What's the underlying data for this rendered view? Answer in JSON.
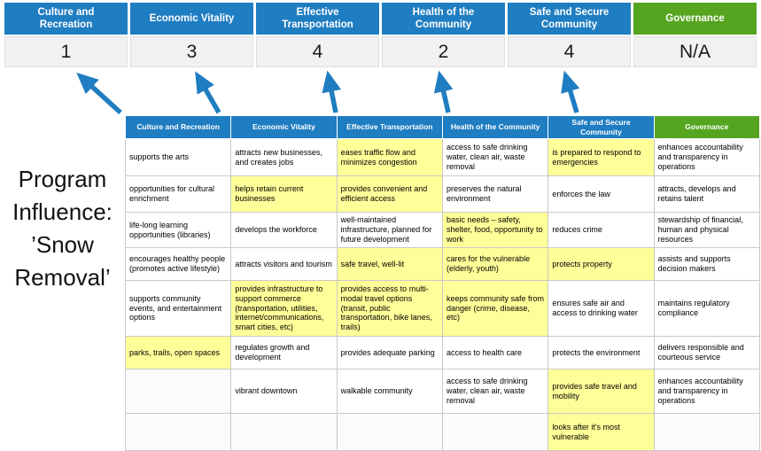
{
  "slide": {
    "program_title": "Program Influence: ’Snow Removal’",
    "program_title_lines": [
      "Program",
      "Influence:",
      "’Snow",
      "Removal’"
    ]
  },
  "colors": {
    "pillar_blue": "#1f7dc1",
    "pillar_green": "#56a521",
    "highlight_yellow": "#ffff99",
    "score_gray": "#f1f1f1",
    "arrow_blue": "#1f7dc1",
    "border_gray": "#c9c9c9"
  },
  "scoreboard": {
    "pillars": [
      {
        "label": "Culture and Recreation",
        "score": "1",
        "color": "blue"
      },
      {
        "label": "Economic Vitality",
        "score": "3",
        "color": "blue"
      },
      {
        "label": "Effective Transportation",
        "score": "4",
        "color": "blue"
      },
      {
        "label": "Health of the Community",
        "score": "2",
        "color": "blue"
      },
      {
        "label": "Safe and Secure Community",
        "score": "4",
        "color": "blue"
      },
      {
        "label": "Governance",
        "score": "N/A",
        "color": "green"
      }
    ]
  },
  "matrix": {
    "headers": [
      {
        "label": "Culture and Recreation",
        "color": "blue"
      },
      {
        "label": "Economic Vitality",
        "color": "blue"
      },
      {
        "label": "Effective Transportation",
        "color": "blue"
      },
      {
        "label": "Health of the Community",
        "color": "blue"
      },
      {
        "label": "Safe and Secure Community",
        "color": "blue"
      },
      {
        "label": "Governance",
        "color": "green"
      }
    ],
    "rows": [
      [
        {
          "text": "supports the arts",
          "highlight": false
        },
        {
          "text": "attracts new businesses, and creates jobs",
          "highlight": false
        },
        {
          "text": "eases traffic flow and minimizes congestion",
          "highlight": true
        },
        {
          "text": "access to safe drinking water, clean air, waste removal",
          "highlight": false
        },
        {
          "text": "is prepared to respond to emergencies",
          "highlight": true
        },
        {
          "text": "enhances accountability and transparency in operations",
          "highlight": false
        }
      ],
      [
        {
          "text": "opportunities for cultural enrichment",
          "highlight": false
        },
        {
          "text": "helps retain current businesses",
          "highlight": true
        },
        {
          "text": "provides convenient and efficient access",
          "highlight": true
        },
        {
          "text": "preserves the natural environment",
          "highlight": false
        },
        {
          "text": "enforces the law",
          "highlight": false
        },
        {
          "text": "attracts, develops and retains talent",
          "highlight": false
        }
      ],
      [
        {
          "text": "life-long learning opportunities (libraries)",
          "highlight": false
        },
        {
          "text": "develops the workforce",
          "highlight": false
        },
        {
          "text": "well-maintained infrastructure, planned for future development",
          "highlight": false
        },
        {
          "text": "basic needs – safety, shelter, food, opportunity to work",
          "highlight": true
        },
        {
          "text": "reduces crime",
          "highlight": false
        },
        {
          "text": "stewardship of financial, human and physical resources",
          "highlight": false
        }
      ],
      [
        {
          "text": "encourages healthy people (promotes active lifestyle)",
          "highlight": false
        },
        {
          "text": "attracts visitors and tourism",
          "highlight": false
        },
        {
          "text": "safe travel, well-lit",
          "highlight": true
        },
        {
          "text": "cares for the vulnerable (elderly, youth)",
          "highlight": true
        },
        {
          "text": "protects property",
          "highlight": true
        },
        {
          "text": "assists and supports decision makers",
          "highlight": false
        }
      ],
      [
        {
          "text": "supports community events, and entertainment options",
          "highlight": false
        },
        {
          "text": "provides infrastructure to support commerce (transportation, utilities, internet/communications, smart cities, etc)",
          "highlight": true
        },
        {
          "text": "provides access to multi-modal travel options (transit, public transportation, bike lanes, trails)",
          "highlight": true
        },
        {
          "text": "keeps community safe from danger (crime, disease, etc)",
          "highlight": true
        },
        {
          "text": "ensures safe air and access to drinking water",
          "highlight": false
        },
        {
          "text": "maintains regulatory compliance",
          "highlight": false
        }
      ],
      [
        {
          "text": "parks, trails, open spaces",
          "highlight": true
        },
        {
          "text": "regulates growth and development",
          "highlight": false
        },
        {
          "text": "provides adequate parking",
          "highlight": false
        },
        {
          "text": "access to health care",
          "highlight": false
        },
        {
          "text": "protects the environment",
          "highlight": false
        },
        {
          "text": "delivers responsible and courteous service",
          "highlight": false
        }
      ],
      [
        {
          "text": "",
          "highlight": false
        },
        {
          "text": "vibrant downtown",
          "highlight": false
        },
        {
          "text": "walkable community",
          "highlight": false
        },
        {
          "text": "access to safe drinking water, clean air, waste removal",
          "highlight": false
        },
        {
          "text": "provides safe travel and mobility",
          "highlight": true
        },
        {
          "text": "enhances accountability and transparency in operations",
          "highlight": false
        }
      ],
      [
        {
          "text": "",
          "highlight": false
        },
        {
          "text": "",
          "highlight": false
        },
        {
          "text": "",
          "highlight": false
        },
        {
          "text": "",
          "highlight": false
        },
        {
          "text": "looks after it's most vulnerable",
          "highlight": true
        },
        {
          "text": "",
          "highlight": false
        }
      ]
    ]
  }
}
